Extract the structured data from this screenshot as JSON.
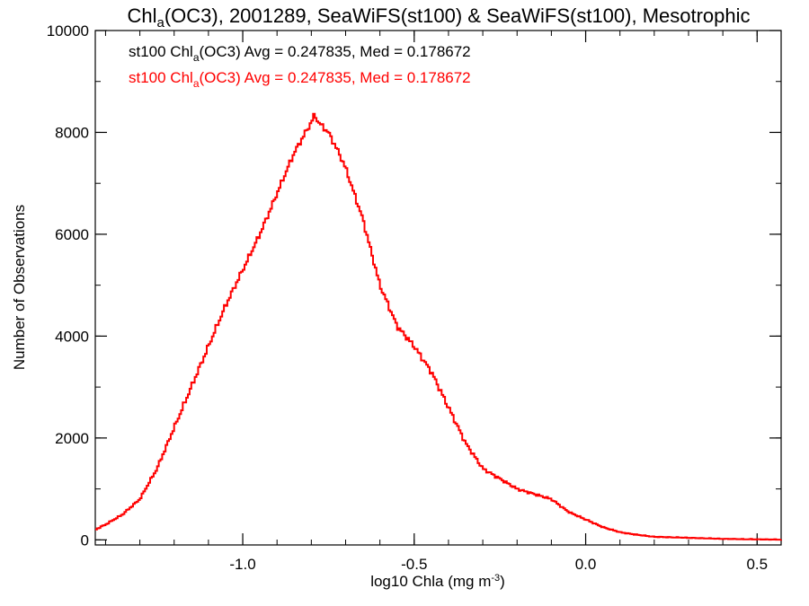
{
  "chart_data": {
    "type": "line",
    "title": {
      "prefix": "Chl",
      "sub": "a",
      "suffix": "(OC3), 2001289, SeaWiFS(st100) & SeaWiFS(st100), Mesotrophic"
    },
    "xlabel": {
      "prefix": "log10 Chla (mg m",
      "sup": "-3",
      "suffix": ")"
    },
    "ylabel": "Number of Observations",
    "xlim": [
      -1.43,
      0.57
    ],
    "ylim": [
      -100,
      10000
    ],
    "xticks": [
      {
        "value": -1.0,
        "label": "-1.0"
      },
      {
        "value": -0.5,
        "label": "-0.5"
      },
      {
        "value": 0.0,
        "label": "0.0"
      },
      {
        "value": 0.5,
        "label": "0.5"
      }
    ],
    "x_minor_step": 0.1,
    "yticks": [
      {
        "value": 0,
        "label": "0"
      },
      {
        "value": 2000,
        "label": "2000"
      },
      {
        "value": 4000,
        "label": "4000"
      },
      {
        "value": 6000,
        "label": "6000"
      },
      {
        "value": 8000,
        "label": "8000"
      },
      {
        "value": 10000,
        "label": "10000"
      }
    ],
    "y_minor_step": 1000,
    "annotations": [
      {
        "prefix": "st100 Chl",
        "sub": "a",
        "suffix": "(OC3) Avg = 0.247835, Med = 0.178672",
        "color": "#000000"
      },
      {
        "prefix": "st100 Chl",
        "sub": "a",
        "suffix": "(OC3) Avg = 0.247835, Med = 0.178672",
        "color": "#ff0000"
      }
    ],
    "series": [
      {
        "color": "#ff0000",
        "x": [
          -1.43,
          -1.4,
          -1.35,
          -1.3,
          -1.25,
          -1.2,
          -1.15,
          -1.1,
          -1.05,
          -1.0,
          -0.95,
          -0.9,
          -0.85,
          -0.8,
          -0.79,
          -0.78,
          -0.75,
          -0.72,
          -0.7,
          -0.65,
          -0.6,
          -0.55,
          -0.5,
          -0.45,
          -0.4,
          -0.35,
          -0.3,
          -0.25,
          -0.2,
          -0.15,
          -0.1,
          -0.05,
          0.0,
          0.05,
          0.1,
          0.15,
          0.2,
          0.3,
          0.4,
          0.5,
          0.57
        ],
        "y": [
          200,
          300,
          500,
          800,
          1400,
          2200,
          3000,
          3800,
          4600,
          5300,
          6000,
          6800,
          7600,
          8200,
          8350,
          8200,
          8000,
          7600,
          7300,
          6300,
          5000,
          4200,
          3800,
          3300,
          2600,
          1900,
          1400,
          1200,
          1000,
          900,
          800,
          550,
          400,
          250,
          150,
          100,
          60,
          40,
          20,
          10,
          5
        ]
      }
    ]
  }
}
